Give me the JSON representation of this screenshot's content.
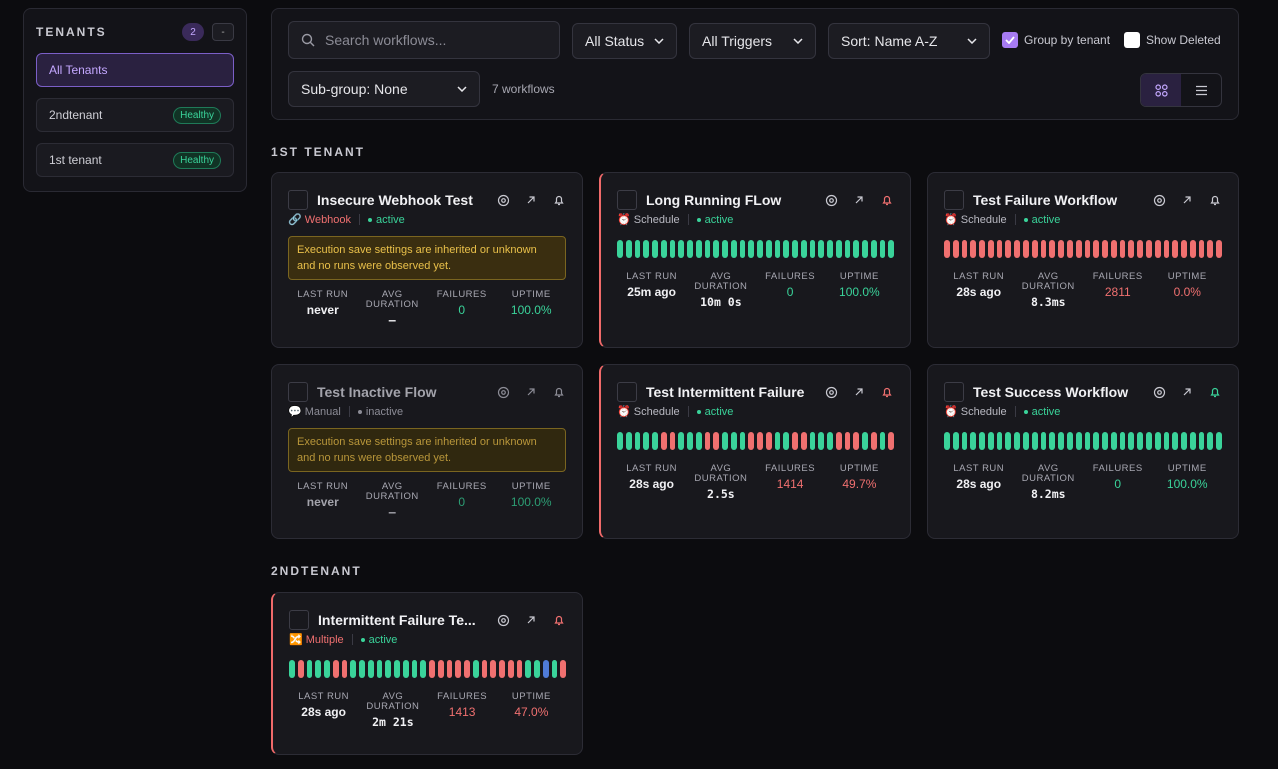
{
  "sidebar": {
    "title": "TENANTS",
    "count": "2",
    "collapse_label": "-",
    "items": [
      {
        "label": "All Tenants",
        "badge": ""
      },
      {
        "label": "2ndtenant",
        "badge": "Healthy"
      },
      {
        "label": "1st tenant",
        "badge": "Healthy"
      }
    ]
  },
  "toolbar": {
    "search_placeholder": "Search workflows...",
    "status_filter": "All Status",
    "trigger_filter": "All Triggers",
    "sort": "Sort: Name A-Z",
    "group_by_tenant": "Group by tenant",
    "show_deleted": "Show Deleted",
    "subgroup": "Sub-group: None",
    "workflow_count": "7 workflows"
  },
  "groups": [
    {
      "title": "1ST TENANT"
    },
    {
      "title": "2NDTENANT"
    }
  ],
  "labels": {
    "last_run": "LAST RUN",
    "avg": "AVG",
    "duration": "DURATION",
    "failures": "FAILURES",
    "uptime": "UPTIME",
    "warning": "Execution save settings are inherited or unknown and no runs were observed yet."
  },
  "cards": [
    {
      "title": "Insecure Webhook Test",
      "trigger": "Webhook",
      "status": "active",
      "last_run": "never",
      "avg_duration": "–",
      "failures": "0",
      "uptime": "100.0%"
    },
    {
      "title": "Long Running FLow",
      "trigger": "Schedule",
      "status": "active",
      "last_run": "25m ago",
      "avg_duration": "10m 0s",
      "failures": "0",
      "uptime": "100.0%"
    },
    {
      "title": "Test Failure Workflow",
      "trigger": "Schedule",
      "status": "active",
      "last_run": "28s ago",
      "avg_duration": "8.3ms",
      "failures": "2811",
      "uptime": "0.0%"
    },
    {
      "title": "Test Inactive Flow",
      "trigger": "Manual",
      "status": "inactive",
      "last_run": "never",
      "avg_duration": "–",
      "failures": "0",
      "uptime": "100.0%"
    },
    {
      "title": "Test Intermittent Failure",
      "trigger": "Schedule",
      "status": "active",
      "last_run": "28s ago",
      "avg_duration": "2.5s",
      "failures": "1414",
      "uptime": "49.7%"
    },
    {
      "title": "Test Success Workflow",
      "trigger": "Schedule",
      "status": "active",
      "last_run": "28s ago",
      "avg_duration": "8.2ms",
      "failures": "0",
      "uptime": "100.0%"
    },
    {
      "title": "Intermittent Failure Te...",
      "trigger": "Multiple",
      "status": "active",
      "last_run": "28s ago",
      "avg_duration": "2m 21s",
      "failures": "1413",
      "uptime": "47.0%"
    }
  ],
  "run_history": {
    "long_running": "gggggggggggggggggggggggggggggggggggggggggggggggggggggggggggggggggggggggggg",
    "failure": "rrrrrrrrrrrrrrrrrrrrrrrrrrrrrrrr",
    "intermittent": "gggggrrgggrrgggrrrggrrgggrrrgrgr",
    "success": "gggggggggggggggggggggggggggggggg",
    "multi": "grgggrrgggggggggrrrrrgrrrrrggbgr"
  },
  "colors": {
    "healthy": "#3ad39a",
    "failing": "#f07070",
    "accent": "#a77bf3",
    "warning": "#e9c04a"
  }
}
